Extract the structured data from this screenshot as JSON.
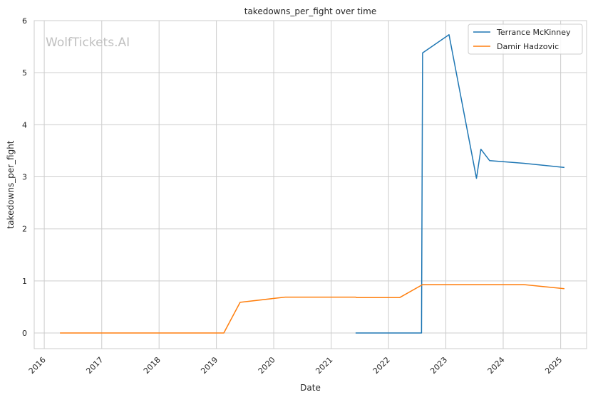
{
  "chart_data": {
    "type": "line",
    "title": "takedowns_per_fight over time",
    "xlabel": "Date",
    "ylabel": "takedowns_per_fight",
    "watermark": "WolfTickets.AI",
    "xlim": [
      "2015-10-29",
      "2025-06-15"
    ],
    "ylim": [
      -0.3,
      6.0
    ],
    "x_ticks": [
      "2016",
      "2017",
      "2018",
      "2019",
      "2020",
      "2021",
      "2022",
      "2023",
      "2024",
      "2025"
    ],
    "y_ticks": [
      "0",
      "1",
      "2",
      "3",
      "4",
      "5",
      "6"
    ],
    "grid": true,
    "legend_position": "top-right",
    "series": [
      {
        "name": "Terrance McKinney",
        "color": "#1f77b4",
        "points": [
          {
            "x": "2021-06-05",
            "y": 0.0
          },
          {
            "x": "2022-07-30",
            "y": 0.0
          },
          {
            "x": "2022-08-06",
            "y": 5.38
          },
          {
            "x": "2023-01-21",
            "y": 5.73
          },
          {
            "x": "2023-07-15",
            "y": 2.97
          },
          {
            "x": "2023-08-12",
            "y": 3.53
          },
          {
            "x": "2023-10-07",
            "y": 3.31
          },
          {
            "x": "2024-05-11",
            "y": 3.26
          },
          {
            "x": "2025-01-25",
            "y": 3.18
          }
        ]
      },
      {
        "name": "Damir Hadzovic",
        "color": "#ff7f0e",
        "points": [
          {
            "x": "2016-04-10",
            "y": 0.0
          },
          {
            "x": "2019-02-17",
            "y": 0.0
          },
          {
            "x": "2019-06-01",
            "y": 0.59
          },
          {
            "x": "2020-03-14",
            "y": 0.69
          },
          {
            "x": "2021-06-05",
            "y": 0.69
          },
          {
            "x": "2021-06-12",
            "y": 0.68
          },
          {
            "x": "2022-03-12",
            "y": 0.68
          },
          {
            "x": "2022-08-06",
            "y": 0.93
          },
          {
            "x": "2024-05-11",
            "y": 0.93
          },
          {
            "x": "2025-01-25",
            "y": 0.85
          }
        ]
      }
    ]
  }
}
